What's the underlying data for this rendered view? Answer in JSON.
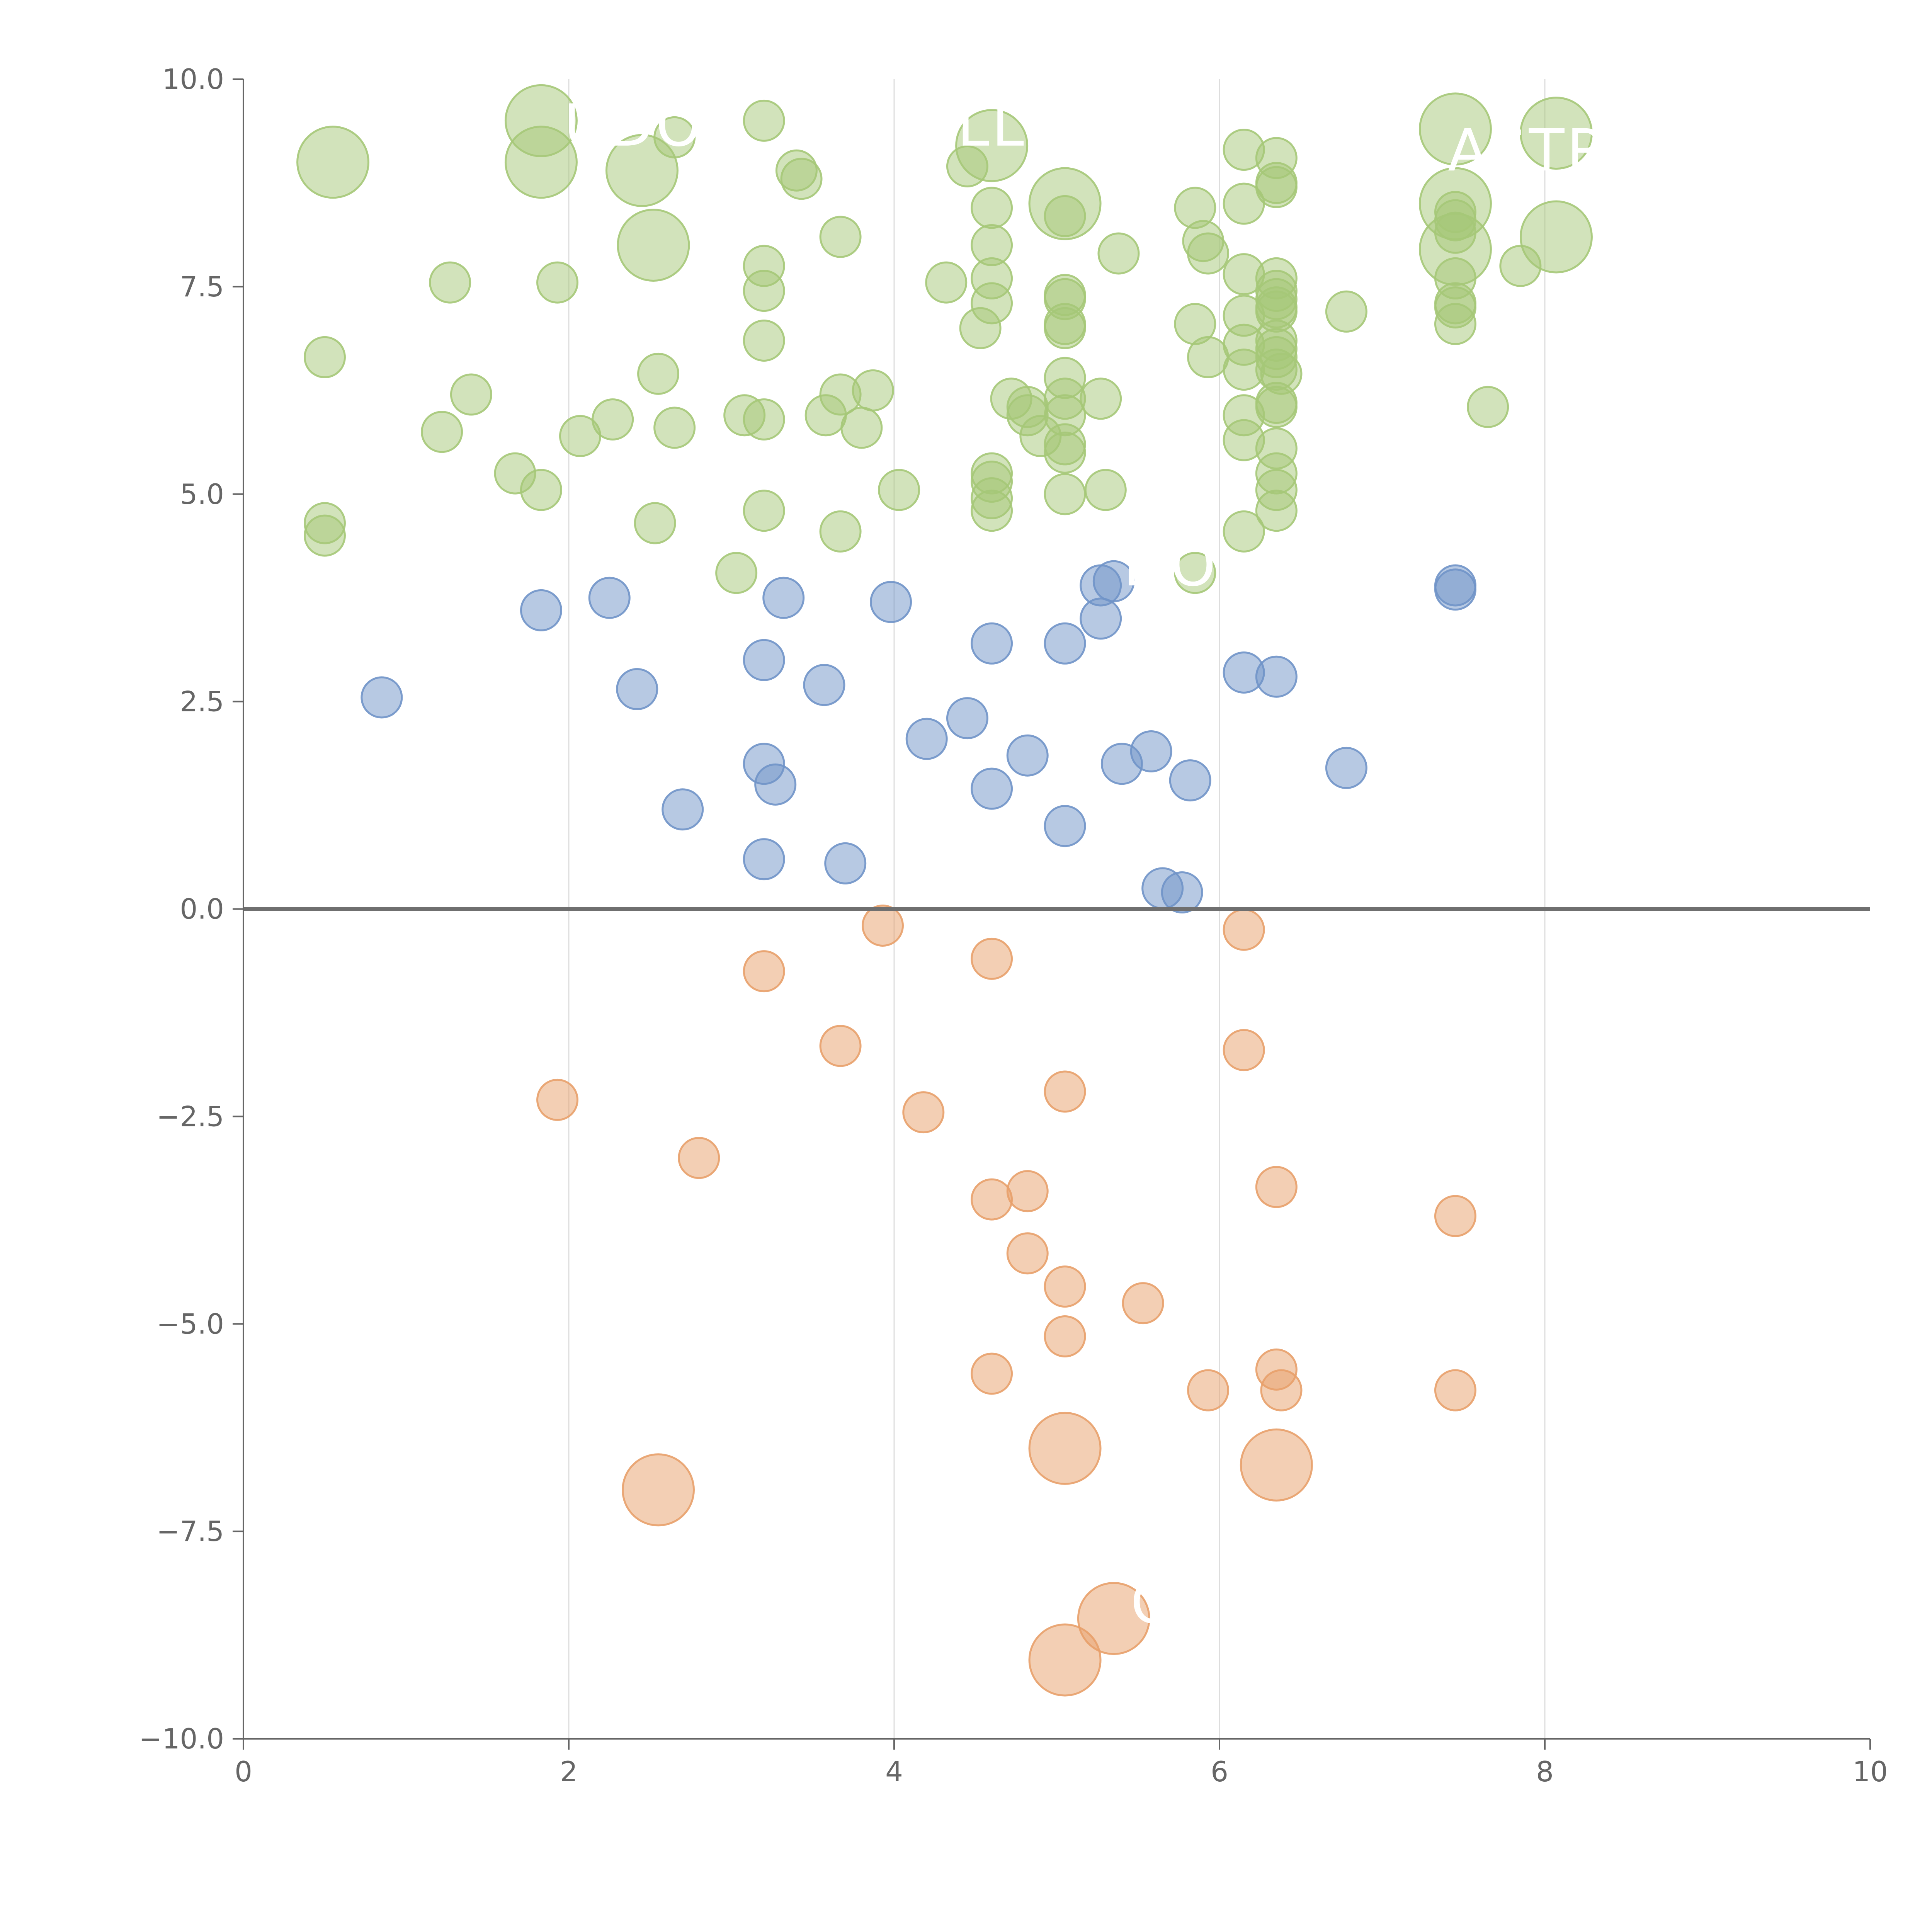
{
  "chart_data": {
    "type": "scatter",
    "xlim": [
      0,
      10
    ],
    "ylim": [
      -10,
      10
    ],
    "x_ticks": [
      "0",
      "2",
      "4",
      "6",
      "8",
      "10"
    ],
    "y_ticks": [
      "10.0",
      "7.5",
      "5.0",
      "2.5",
      "0.0",
      "−2.5",
      "−5.0",
      "−7.5",
      "−10.0"
    ],
    "vertical_grid_at": [
      2,
      4,
      6,
      8
    ],
    "horizontal_reference_line": 0,
    "grid": "vertical only",
    "legend": "none",
    "colors": {
      "green": "#a5c878",
      "blue": "#7094c8",
      "orange": "#e8a06a"
    },
    "overlay_text": [
      {
        "text": "UDO",
        "x": 2.4,
        "y": 9.2
      },
      {
        "text": "LL",
        "x": 4.6,
        "y": 9.2
      },
      {
        "text": "ASTR",
        "x": 7.9,
        "y": 8.9
      },
      {
        "text": "DO",
        "x": 5.7,
        "y": 3.9
      },
      {
        "text": "O",
        "x": 5.6,
        "y": -8.6
      }
    ],
    "series": [
      {
        "color": "green",
        "points": [
          [
            0.55,
            9.0,
            2
          ],
          [
            1.83,
            9.5,
            2
          ],
          [
            1.83,
            9.0,
            2
          ],
          [
            2.45,
            8.9,
            2
          ],
          [
            2.52,
            8.0,
            2
          ],
          [
            4.6,
            9.2,
            2
          ],
          [
            5.05,
            8.5,
            2
          ],
          [
            7.45,
            9.4,
            2
          ],
          [
            7.45,
            8.5,
            2
          ],
          [
            7.45,
            7.95,
            2
          ],
          [
            8.07,
            9.35,
            2
          ],
          [
            8.07,
            8.1,
            2
          ],
          [
            2.65,
            9.3,
            1
          ],
          [
            3.2,
            9.5,
            1
          ],
          [
            3.4,
            8.9,
            1
          ],
          [
            3.43,
            8.8,
            1
          ],
          [
            3.67,
            8.1,
            1
          ],
          [
            4.45,
            8.95,
            1
          ],
          [
            4.6,
            8.45,
            1
          ],
          [
            4.6,
            8.0,
            1
          ],
          [
            4.6,
            7.6,
            1
          ],
          [
            4.6,
            7.3,
            1
          ],
          [
            4.32,
            7.55,
            1
          ],
          [
            4.53,
            7.0,
            1
          ],
          [
            5.05,
            8.35,
            1
          ],
          [
            5.05,
            7.4,
            1
          ],
          [
            5.05,
            7.35,
            1
          ],
          [
            5.05,
            7.05,
            1
          ],
          [
            5.05,
            7.0,
            1
          ],
          [
            5.38,
            7.9,
            1
          ],
          [
            5.05,
            6.4,
            1
          ],
          [
            5.05,
            6.15,
            1
          ],
          [
            5.05,
            5.95,
            1
          ],
          [
            5.05,
            5.6,
            1
          ],
          [
            5.05,
            5.5,
            1
          ],
          [
            5.05,
            5.0,
            1
          ],
          [
            5.27,
            6.15,
            1
          ],
          [
            5.3,
            5.05,
            1
          ],
          [
            4.6,
            5.25,
            1
          ],
          [
            4.6,
            5.15,
            1
          ],
          [
            4.6,
            4.95,
            1
          ],
          [
            4.6,
            4.8,
            1
          ],
          [
            4.72,
            6.15,
            1
          ],
          [
            4.82,
            6.05,
            1
          ],
          [
            4.82,
            5.95,
            1
          ],
          [
            4.9,
            5.7,
            1
          ],
          [
            1.27,
            7.55,
            1
          ],
          [
            1.93,
            7.55,
            1
          ],
          [
            0.5,
            6.65,
            1
          ],
          [
            1.4,
            6.2,
            1
          ],
          [
            1.22,
            5.75,
            1
          ],
          [
            1.67,
            5.25,
            1
          ],
          [
            1.83,
            5.05,
            1
          ],
          [
            2.07,
            5.7,
            1
          ],
          [
            2.27,
            5.9,
            1
          ],
          [
            2.55,
            6.45,
            1
          ],
          [
            2.65,
            5.8,
            1
          ],
          [
            2.53,
            4.65,
            1
          ],
          [
            0.5,
            4.65,
            1
          ],
          [
            0.5,
            4.5,
            1
          ],
          [
            3.2,
            7.75,
            1
          ],
          [
            3.2,
            7.45,
            1
          ],
          [
            3.2,
            6.85,
            1
          ],
          [
            3.08,
            5.95,
            1
          ],
          [
            3.2,
            5.9,
            1
          ],
          [
            3.2,
            4.8,
            1
          ],
          [
            3.03,
            4.05,
            1
          ],
          [
            3.58,
            5.95,
            1
          ],
          [
            3.67,
            6.2,
            1
          ],
          [
            3.87,
            6.25,
            1
          ],
          [
            3.8,
            5.8,
            1
          ],
          [
            3.67,
            4.55,
            1
          ],
          [
            4.03,
            5.05,
            1
          ],
          [
            5.85,
            8.45,
            1
          ],
          [
            5.9,
            8.05,
            1
          ],
          [
            5.93,
            7.9,
            1
          ],
          [
            5.85,
            7.05,
            1
          ],
          [
            5.93,
            6.65,
            1
          ],
          [
            5.85,
            4.05,
            1
          ],
          [
            6.15,
            9.15,
            1
          ],
          [
            6.15,
            8.5,
            1
          ],
          [
            6.15,
            7.65,
            1
          ],
          [
            6.15,
            7.15,
            1
          ],
          [
            6.15,
            6.8,
            1
          ],
          [
            6.15,
            6.5,
            1
          ],
          [
            6.15,
            5.95,
            1
          ],
          [
            6.15,
            5.65,
            1
          ],
          [
            6.15,
            4.55,
            1
          ],
          [
            6.35,
            9.05,
            1
          ],
          [
            6.35,
            8.75,
            1
          ],
          [
            6.35,
            8.7,
            1
          ],
          [
            6.35,
            7.6,
            1
          ],
          [
            6.35,
            7.45,
            1
          ],
          [
            6.35,
            7.35,
            1
          ],
          [
            6.35,
            7.25,
            1
          ],
          [
            6.35,
            7.2,
            1
          ],
          [
            6.35,
            6.85,
            1
          ],
          [
            6.35,
            6.75,
            1
          ],
          [
            6.35,
            6.65,
            1
          ],
          [
            6.35,
            6.5,
            1
          ],
          [
            6.38,
            6.45,
            1
          ],
          [
            6.35,
            6.1,
            1
          ],
          [
            6.35,
            6.05,
            1
          ],
          [
            6.35,
            5.55,
            1
          ],
          [
            6.35,
            5.25,
            1
          ],
          [
            6.35,
            5.05,
            1
          ],
          [
            6.35,
            4.8,
            1
          ],
          [
            6.78,
            7.2,
            1
          ],
          [
            7.45,
            8.4,
            1
          ],
          [
            7.45,
            8.3,
            1
          ],
          [
            7.45,
            8.15,
            1
          ],
          [
            7.45,
            7.6,
            1
          ],
          [
            7.45,
            7.3,
            1
          ],
          [
            7.45,
            7.25,
            1
          ],
          [
            7.45,
            7.05,
            1
          ],
          [
            7.65,
            6.05,
            1
          ],
          [
            7.85,
            7.75,
            1
          ]
        ]
      },
      {
        "color": "blue",
        "points": [
          [
            0.85,
            2.55,
            1
          ],
          [
            1.83,
            3.6,
            1
          ],
          [
            2.25,
            3.75,
            1
          ],
          [
            2.42,
            2.65,
            1
          ],
          [
            2.7,
            1.2,
            1
          ],
          [
            3.2,
            3.0,
            1
          ],
          [
            3.32,
            3.75,
            1
          ],
          [
            3.57,
            2.7,
            1
          ],
          [
            3.2,
            1.75,
            1
          ],
          [
            3.27,
            1.5,
            1
          ],
          [
            3.2,
            0.6,
            1
          ],
          [
            3.7,
            0.55,
            1
          ],
          [
            3.98,
            3.7,
            1
          ],
          [
            4.2,
            2.05,
            1
          ],
          [
            4.45,
            2.3,
            1
          ],
          [
            4.6,
            3.2,
            1
          ],
          [
            4.6,
            1.45,
            1
          ],
          [
            4.82,
            1.85,
            1
          ],
          [
            5.05,
            3.2,
            1
          ],
          [
            5.05,
            1.0,
            1
          ],
          [
            5.27,
            3.9,
            1
          ],
          [
            5.35,
            3.95,
            1
          ],
          [
            5.27,
            3.5,
            1
          ],
          [
            5.4,
            1.75,
            1
          ],
          [
            5.58,
            1.9,
            1
          ],
          [
            5.82,
            1.55,
            1
          ],
          [
            5.65,
            0.25,
            1
          ],
          [
            5.77,
            0.2,
            1
          ],
          [
            6.15,
            2.85,
            1
          ],
          [
            6.35,
            2.8,
            1
          ],
          [
            6.78,
            1.7,
            1
          ],
          [
            7.45,
            3.9,
            1
          ],
          [
            7.45,
            3.85,
            1
          ]
        ]
      },
      {
        "color": "orange",
        "points": [
          [
            3.93,
            -0.2,
            1
          ],
          [
            3.2,
            -0.75,
            1
          ],
          [
            3.67,
            -1.65,
            1
          ],
          [
            4.6,
            -0.6,
            1
          ],
          [
            6.15,
            -0.25,
            1
          ],
          [
            6.15,
            -1.7,
            1
          ],
          [
            1.93,
            -2.3,
            1
          ],
          [
            2.8,
            -3.0,
            1
          ],
          [
            4.18,
            -2.45,
            1
          ],
          [
            5.05,
            -2.2,
            1
          ],
          [
            4.6,
            -3.5,
            1
          ],
          [
            4.82,
            -3.4,
            1
          ],
          [
            4.82,
            -4.15,
            1
          ],
          [
            5.05,
            -4.55,
            1
          ],
          [
            5.05,
            -5.15,
            1
          ],
          [
            5.53,
            -4.75,
            1
          ],
          [
            6.35,
            -3.35,
            1
          ],
          [
            7.45,
            -3.7,
            1
          ],
          [
            4.6,
            -5.6,
            1
          ],
          [
            5.93,
            -5.8,
            1
          ],
          [
            6.35,
            -5.55,
            1
          ],
          [
            6.38,
            -5.8,
            1
          ],
          [
            7.45,
            -5.8,
            1
          ],
          [
            2.55,
            -7.0,
            2
          ],
          [
            5.05,
            -6.5,
            2
          ],
          [
            6.35,
            -6.7,
            2
          ],
          [
            5.35,
            -8.55,
            2
          ],
          [
            5.05,
            -9.05,
            2
          ]
        ]
      }
    ]
  }
}
